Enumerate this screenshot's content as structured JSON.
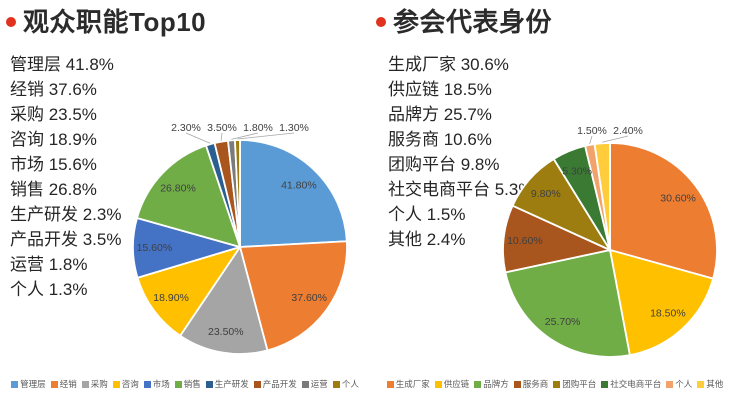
{
  "style": {
    "bullet_color": "#E0321F",
    "title_color": "#2B2B2B",
    "list_text_color": "#262626",
    "slice_label_color": "#404040",
    "legend_text_color": "#595959",
    "leader_line_color": "#A6A6A6",
    "background": "#FFFFFF"
  },
  "chart_data": [
    {
      "type": "pie",
      "title": "观众职能Top10",
      "labels": [
        "管理层",
        "经销",
        "采购",
        "咨询",
        "市场",
        "销售",
        "生产研发",
        "产品开发",
        "运营",
        "个人"
      ],
      "values": [
        41.8,
        37.6,
        23.5,
        18.9,
        15.6,
        26.8,
        2.3,
        3.5,
        1.8,
        1.3
      ],
      "colors": [
        "#5B9BD5",
        "#ED7D31",
        "#A5A5A5",
        "#FFC000",
        "#4472C4",
        "#70AD47",
        "#2A5F8F",
        "#A9551E",
        "#7B7B7B",
        "#9D7D10"
      ],
      "list_items": [
        "管理层 41.8%",
        "经销 37.6%",
        "采购 23.5%",
        "咨询 18.9%",
        "市场 15.6%",
        "销售 26.8%",
        "生产研发 2.3%",
        "产品开发 3.5%",
        "运营 1.8%",
        "个人 1.3%"
      ],
      "slice_data_labels": [
        "41.80%",
        "37.60%",
        "23.50%",
        "18.90%",
        "15.60%",
        "26.80%",
        "2.30%",
        "3.50%",
        "1.80%",
        "1.30%"
      ],
      "legend_position": "bottom",
      "start_angle_deg": 0,
      "direction": "clockwise"
    },
    {
      "type": "pie",
      "title": "参会代表身份",
      "labels": [
        "生成厂家",
        "供应链",
        "品牌方",
        "服务商",
        "团购平台",
        "社交电商平台",
        "个人",
        "其他"
      ],
      "values": [
        30.6,
        18.5,
        25.7,
        10.6,
        9.8,
        5.3,
        1.5,
        2.4
      ],
      "colors": [
        "#ED7D31",
        "#FFC000",
        "#70AD47",
        "#A9551E",
        "#9D7D10",
        "#3A7A33",
        "#F2A36C",
        "#FFCD3C"
      ],
      "list_items": [
        "生成厂家 30.6%",
        "供应链 18.5%",
        "品牌方 25.7%",
        "服务商 10.6%",
        "团购平台 9.8%",
        "社交电商平台 5.3%",
        "个人 1.5%",
        "其他 2.4%"
      ],
      "slice_data_labels": [
        "30.60%",
        "18.50%",
        "25.70%",
        "10.60%",
        "9.80%",
        "5.30%",
        "1.50%",
        "2.40%"
      ],
      "legend_position": "bottom",
      "start_angle_deg": 0,
      "direction": "clockwise"
    }
  ]
}
